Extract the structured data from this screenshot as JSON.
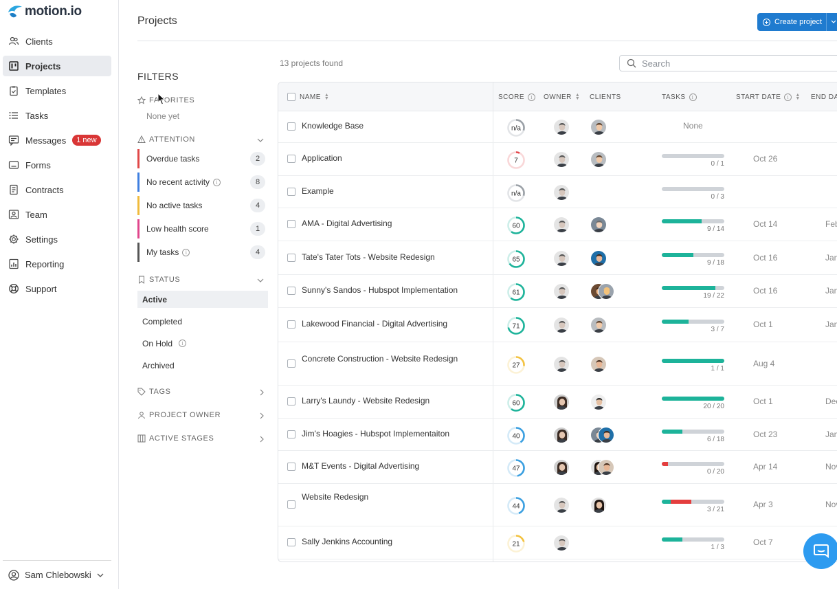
{
  "brand": {
    "name": "motion.io",
    "accent": "#1f7bcf"
  },
  "nav": [
    {
      "label": "Clients",
      "icon": "users-icon"
    },
    {
      "label": "Projects",
      "icon": "projects-icon",
      "active": true
    },
    {
      "label": "Templates",
      "icon": "clipboard-icon"
    },
    {
      "label": "Tasks",
      "icon": "list-icon"
    },
    {
      "label": "Messages",
      "icon": "message-icon",
      "badge": "1 new"
    },
    {
      "label": "Forms",
      "icon": "form-icon"
    },
    {
      "label": "Contracts",
      "icon": "document-icon"
    },
    {
      "label": "Team",
      "icon": "team-icon"
    },
    {
      "label": "Settings",
      "icon": "gear-icon"
    },
    {
      "label": "Reporting",
      "icon": "chart-icon"
    },
    {
      "label": "Support",
      "icon": "lifebuoy-icon"
    }
  ],
  "user": {
    "name": "Sam Chlebowski"
  },
  "header": {
    "title": "Projects",
    "create_label": "Create project"
  },
  "filters": {
    "title": "FILTERS",
    "favorites": {
      "label": "FAVORITES",
      "empty": "None yet"
    },
    "attention": {
      "label": "ATTENTION",
      "items": [
        {
          "label": "Overdue tasks",
          "count": "2",
          "color": "#e04848"
        },
        {
          "label": "No recent activity",
          "count": "8",
          "color": "#3f7fe0",
          "info": true
        },
        {
          "label": "No active tasks",
          "count": "4",
          "color": "#f0bb3c"
        },
        {
          "label": "Low health score",
          "count": "1",
          "color": "#e0468c"
        },
        {
          "label": "My tasks",
          "count": "4",
          "color": "#555555",
          "info": true
        }
      ]
    },
    "status": {
      "label": "STATUS",
      "items": [
        {
          "label": "Active",
          "selected": true
        },
        {
          "label": "Completed"
        },
        {
          "label": "On Hold",
          "info": true
        },
        {
          "label": "Archived"
        }
      ]
    },
    "tags": {
      "label": "TAGS"
    },
    "owner": {
      "label": "PROJECT OWNER"
    },
    "stages": {
      "label": "ACTIVE STAGES"
    }
  },
  "results": {
    "found": "13 projects found",
    "search_placeholder": "Search"
  },
  "table": {
    "columns": {
      "name": "NAME",
      "score": "SCORE",
      "owner": "OWNER",
      "clients": "CLIENTS",
      "tasks": "TASKS",
      "start": "START DATE",
      "end": "END DAT"
    },
    "rows": [
      {
        "name": "Knowledge Base",
        "score": "n/a",
        "score_value": null,
        "owner": "m",
        "clients": [
          "c1"
        ],
        "tasks": null,
        "tasks_none": "None",
        "start": "",
        "end": ""
      },
      {
        "name": "Application",
        "score": "7",
        "score_value": 7,
        "owner": "m",
        "clients": [
          "c1"
        ],
        "tasks": {
          "done": 0,
          "total": 1,
          "label": "0 / 1",
          "fill": 0,
          "overdue": 0
        },
        "start": "Oct 26",
        "end": ""
      },
      {
        "name": "Example",
        "score": "n/a",
        "score_value": null,
        "owner": "m",
        "clients": [],
        "tasks": {
          "done": 0,
          "total": 3,
          "label": "0 / 3",
          "fill": 0,
          "overdue": 0
        },
        "start": "",
        "end": ""
      },
      {
        "name": "AMA - Digital Advertising",
        "score": "60",
        "score_value": 60,
        "owner": "m",
        "clients": [
          "c2"
        ],
        "tasks": {
          "done": 9,
          "total": 14,
          "label": "9 / 14",
          "fill": 0.64,
          "overdue": 0
        },
        "start": "Oct 14",
        "end": "Feb"
      },
      {
        "name": "Tate's Tater Tots - Website Redesign",
        "score": "65",
        "score_value": 65,
        "owner": "m",
        "clients": [
          "c3"
        ],
        "tasks": {
          "done": 9,
          "total": 18,
          "label": "9 / 18",
          "fill": 0.5,
          "overdue": 0
        },
        "start": "Oct 16",
        "end": "Jan"
      },
      {
        "name": "Sunny's Sandos - Hubspot Implementation",
        "score": "61",
        "score_value": 61,
        "owner": "m",
        "clients": [
          "c4",
          "c5"
        ],
        "tasks": {
          "done": 19,
          "total": 22,
          "label": "19 / 22",
          "fill": 0.86,
          "overdue": 0
        },
        "start": "Oct 16",
        "end": "Jan"
      },
      {
        "name": "Lakewood Financial - Digital Advertising",
        "score": "71",
        "score_value": 71,
        "owner": "m",
        "clients": [
          "c1"
        ],
        "tasks": {
          "done": 3,
          "total": 7,
          "label": "3 / 7",
          "fill": 0.43,
          "overdue": 0
        },
        "start": "Oct 1",
        "end": "Jan"
      },
      {
        "name": "Concrete Construction - Website Redesign",
        "score": "27",
        "score_value": 27,
        "owner": "m",
        "clients": [
          "c6"
        ],
        "tasks": {
          "done": 1,
          "total": 1,
          "label": "1 / 1",
          "fill": 1,
          "overdue": 0
        },
        "start": "Aug 4",
        "end": ""
      },
      {
        "name": "Larry's Laundy - Website Redesign",
        "score": "60",
        "score_value": 60,
        "owner": "f",
        "clients": [
          "c7"
        ],
        "tasks": {
          "done": 20,
          "total": 20,
          "label": "20 / 20",
          "fill": 1,
          "overdue": 0
        },
        "start": "Oct 1",
        "end": "Dec"
      },
      {
        "name": "Jim's Hoagies - Hubspot Implementaiton",
        "score": "40",
        "score_value": 40,
        "owner": "f",
        "clients": [
          "c2",
          "c3"
        ],
        "tasks": {
          "done": 6,
          "total": 18,
          "label": "6 / 18",
          "fill": 0.33,
          "overdue": 0
        },
        "start": "Oct 23",
        "end": "Jan"
      },
      {
        "name": "M&T Events - Digital Advertising",
        "score": "47",
        "score_value": 47,
        "owner": "f",
        "clients": [
          "c8",
          "c6"
        ],
        "tasks": {
          "done": 0,
          "total": 20,
          "label": "0 / 20",
          "fill": 0,
          "overdue": 0.1
        },
        "start": "Apr 14",
        "end": "Nov"
      },
      {
        "name": "Website Redesign",
        "score": "44",
        "score_value": 44,
        "owner": "m",
        "clients": [
          "c8"
        ],
        "tasks": {
          "done": 3,
          "total": 21,
          "label": "3 / 21",
          "fill": 0.14,
          "overdue": 0.33
        },
        "start": "Apr 3",
        "end": "Nov"
      },
      {
        "name": "Sally Jenkins Accounting",
        "score": "21",
        "score_value": 21,
        "owner": "m",
        "clients": [],
        "tasks": {
          "done": 1,
          "total": 3,
          "label": "1 / 3",
          "fill": 0.33,
          "overdue": 0
        },
        "start": "Oct 7",
        "end": ""
      }
    ]
  },
  "colors": {
    "progress": "#1db39a",
    "overdue": "#e43e3e",
    "score_good": "#1db39a",
    "score_mid": "#3a9fe0",
    "score_low": "#f3c23f",
    "score_bad": "#e5484d"
  }
}
